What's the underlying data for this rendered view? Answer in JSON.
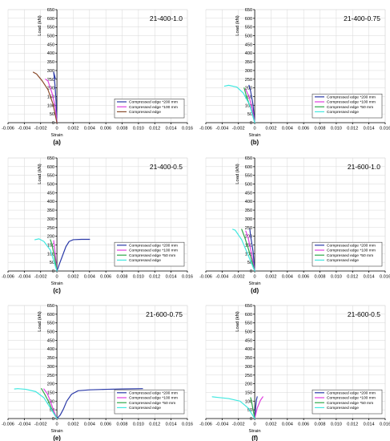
{
  "figure": {
    "x_label": "Strain",
    "y_label": "Load (kN)"
  },
  "chart_data": [
    {
      "type": "line",
      "title": "21-400-1.0",
      "caption": "(a)",
      "xlim": [
        -0.006,
        0.016
      ],
      "ylim": [
        0,
        650
      ],
      "x_ticks": [
        "-0.006",
        "-0.004",
        "-0.002",
        "0",
        "0.002",
        "0.004",
        "0.006",
        "0.008",
        "0.010",
        "0.012",
        "0.014",
        "0.016"
      ],
      "y_ticks": [
        "0",
        "50",
        "100",
        "150",
        "200",
        "250",
        "300",
        "350",
        "400",
        "450",
        "500",
        "550",
        "600",
        "650"
      ],
      "grid": true,
      "legend_position": "bottom-right",
      "series": [
        {
          "name": "Compressed edge *200 mm",
          "color": "#2b3aa8",
          "x": [
            0,
            -0.0001,
            -0.00025,
            -0.0004,
            -0.0002
          ],
          "y": [
            0,
            120,
            220,
            290,
            255
          ]
        },
        {
          "name": "Compressed edge *100 mm",
          "color": "#e040e0",
          "x": [
            0,
            -0.0002,
            -0.0006,
            -0.0011,
            -0.0014
          ],
          "y": [
            0,
            90,
            170,
            240,
            250
          ]
        },
        {
          "name": "Compressed edge",
          "color": "#8a4b2b",
          "x": [
            0,
            -0.0005,
            -0.0011,
            -0.0018,
            -0.0025,
            -0.0029
          ],
          "y": [
            0,
            110,
            190,
            240,
            280,
            290
          ]
        }
      ]
    },
    {
      "type": "line",
      "title": "21-400-0.75",
      "caption": "(b)",
      "xlim": [
        -0.006,
        0.016
      ],
      "ylim": [
        0,
        650
      ],
      "x_ticks": [
        "-0.006",
        "-0.004",
        "-0.002",
        "0",
        "0.002",
        "0.004",
        "0.006",
        "0.008",
        "0.010",
        "0.012",
        "0.014",
        "0.016"
      ],
      "y_ticks": [
        "0",
        "50",
        "100",
        "150",
        "200",
        "250",
        "300",
        "350",
        "400",
        "450",
        "500",
        "550",
        "600",
        "650"
      ],
      "grid": true,
      "legend_position": "bottom-right",
      "series": [
        {
          "name": "Compressed edge *200 mm",
          "color": "#2b3aa8",
          "x": [
            0,
            -0.0002,
            -0.0005,
            -0.0007
          ],
          "y": [
            0,
            100,
            180,
            215
          ]
        },
        {
          "name": "Compressed edge *100 mm",
          "color": "#e040e0",
          "x": [
            0,
            -0.0003,
            -0.0007,
            -0.0011
          ],
          "y": [
            0,
            80,
            150,
            190
          ]
        },
        {
          "name": "Compressed edge *50 mm",
          "color": "#2ea84a",
          "x": [
            0,
            -0.0004,
            -0.001,
            -0.0013
          ],
          "y": [
            0,
            70,
            150,
            200
          ]
        },
        {
          "name": "Compressed edge",
          "color": "#42e8e0",
          "x": [
            0,
            -0.0006,
            -0.0014,
            -0.0022,
            -0.0032,
            -0.0037
          ],
          "y": [
            0,
            100,
            170,
            205,
            215,
            210
          ]
        }
      ]
    },
    {
      "type": "line",
      "title": "21-400-0.5",
      "caption": "(c)",
      "xlim": [
        -0.006,
        0.016
      ],
      "ylim": [
        0,
        650
      ],
      "x_ticks": [
        "-0.006",
        "-0.004",
        "-0.002",
        "0",
        "0.002",
        "0.004",
        "0.006",
        "0.008",
        "0.010",
        "0.012",
        "0.014",
        "0.016"
      ],
      "y_ticks": [
        "0",
        "50",
        "100",
        "150",
        "200",
        "250",
        "300",
        "350",
        "400",
        "450",
        "500",
        "550",
        "600",
        "650"
      ],
      "grid": true,
      "legend_position": "bottom-right",
      "series": [
        {
          "name": "Compressed edge *200 mm",
          "color": "#2b3aa8",
          "x": [
            0,
            0.0003,
            0.0007,
            0.0011,
            0.0015,
            0.002,
            0.003,
            0.004
          ],
          "y": [
            0,
            40,
            90,
            140,
            170,
            180,
            182,
            182
          ]
        },
        {
          "name": "Compressed edge *100 mm",
          "color": "#e040e0",
          "x": [
            0,
            -0.0002,
            -0.0004
          ],
          "y": [
            0,
            90,
            175
          ]
        },
        {
          "name": "Compressed edge *50 mm",
          "color": "#2ea84a",
          "x": [
            0,
            -0.0003,
            -0.0006,
            -0.0008
          ],
          "y": [
            0,
            80,
            150,
            180
          ]
        },
        {
          "name": "Compressed edge",
          "color": "#42e8e0",
          "x": [
            0,
            -0.0008,
            -0.0016,
            -0.0022,
            -0.0027
          ],
          "y": [
            0,
            120,
            170,
            185,
            180
          ]
        }
      ]
    },
    {
      "type": "line",
      "title": "21-600-1.0",
      "caption": "(d)",
      "xlim": [
        -0.006,
        0.016
      ],
      "ylim": [
        0,
        650
      ],
      "x_ticks": [
        "-0.006",
        "-0.004",
        "-0.002",
        "0",
        "0.002",
        "0.004",
        "0.006",
        "0.008",
        "0.010",
        "0.012",
        "0.014",
        "0.016"
      ],
      "y_ticks": [
        "0",
        "50",
        "100",
        "150",
        "200",
        "250",
        "300",
        "350",
        "400",
        "450",
        "500",
        "550",
        "600",
        "650"
      ],
      "grid": true,
      "legend_position": "bottom-right",
      "series": [
        {
          "name": "Compressed edge *200 mm",
          "color": "#2b3aa8",
          "x": [
            0,
            -0.0002,
            -0.0005,
            -0.0006
          ],
          "y": [
            0,
            110,
            200,
            240
          ]
        },
        {
          "name": "Compressed edge *100 mm",
          "color": "#e040e0",
          "x": [
            0,
            -0.0004,
            -0.0008,
            -0.0011
          ],
          "y": [
            0,
            100,
            190,
            230
          ]
        },
        {
          "name": "Compressed edge *50 mm",
          "color": "#2ea84a",
          "x": [
            0,
            -0.0006,
            -0.0012,
            -0.0016
          ],
          "y": [
            0,
            100,
            190,
            240
          ]
        },
        {
          "name": "Compressed edge",
          "color": "#42e8e0",
          "x": [
            0,
            -0.0008,
            -0.0016,
            -0.0024,
            -0.0027
          ],
          "y": [
            0,
            90,
            180,
            235,
            240
          ]
        }
      ]
    },
    {
      "type": "line",
      "title": "21-600-0.75",
      "caption": "(e)",
      "xlim": [
        -0.006,
        0.016
      ],
      "ylim": [
        0,
        650
      ],
      "x_ticks": [
        "-0.006",
        "-0.004",
        "-0.002",
        "0",
        "0.002",
        "0.004",
        "0.006",
        "0.008",
        "0.010",
        "0.012",
        "0.014",
        "0.016"
      ],
      "y_ticks": [
        "0",
        "50",
        "100",
        "150",
        "200",
        "250",
        "300",
        "350",
        "400",
        "450",
        "500",
        "550",
        "600",
        "650"
      ],
      "grid": true,
      "legend_position": "bottom-right",
      "series": [
        {
          "name": "Compressed edge *200 mm",
          "color": "#2b3aa8",
          "x": [
            0,
            0.0004,
            0.0008,
            0.0012,
            0.0018,
            0.0026,
            0.004,
            0.006,
            0.008,
            0.0105
          ],
          "y": [
            0,
            20,
            55,
            100,
            140,
            160,
            165,
            168,
            170,
            172
          ]
        },
        {
          "name": "Compressed edge *100 mm",
          "color": "#e040e0",
          "x": [
            0,
            -0.0004,
            -0.0008,
            -0.0012,
            -0.0016
          ],
          "y": [
            0,
            45,
            100,
            145,
            170
          ]
        },
        {
          "name": "Compressed edge *50 mm",
          "color": "#2ea84a",
          "x": [
            0,
            -0.0005,
            -0.001,
            -0.0015,
            -0.0019
          ],
          "y": [
            0,
            40,
            95,
            140,
            172
          ]
        },
        {
          "name": "Compressed edge",
          "color": "#42e8e0",
          "x": [
            0,
            -0.0008,
            -0.0016,
            -0.0026,
            -0.0038,
            -0.0048,
            -0.0052
          ],
          "y": [
            0,
            60,
            120,
            155,
            168,
            172,
            170
          ]
        }
      ]
    },
    {
      "type": "line",
      "title": "21-600-0.5",
      "caption": "(f)",
      "xlim": [
        -0.006,
        0.016
      ],
      "ylim": [
        0,
        650
      ],
      "x_ticks": [
        "-0.006",
        "-0.004",
        "-0.002",
        "0",
        "0.002",
        "0.004",
        "0.006",
        "0.008",
        "0.010",
        "0.012",
        "0.014",
        "0.016"
      ],
      "y_ticks": [
        "0",
        "50",
        "100",
        "150",
        "200",
        "250",
        "300",
        "350",
        "400",
        "450",
        "500",
        "550",
        "600",
        "650"
      ],
      "grid": true,
      "legend_position": "bottom-right",
      "series": [
        {
          "name": "Compressed edge *200 mm",
          "color": "#2b3aa8",
          "x": [
            0,
            0.0001,
            0.0002,
            0.0003
          ],
          "y": [
            0,
            60,
            105,
            125
          ]
        },
        {
          "name": "Compressed edge *100 mm",
          "color": "#e040e0",
          "x": [
            0,
            0.0003,
            0.0007,
            0.001
          ],
          "y": [
            0,
            60,
            105,
            125
          ]
        },
        {
          "name": "Compressed edge *50 mm",
          "color": "#2ea84a",
          "x": [
            0,
            -0.0002,
            -0.0004,
            -0.0005
          ],
          "y": [
            0,
            50,
            100,
            120
          ]
        },
        {
          "name": "Compressed edge",
          "color": "#42e8e0",
          "x": [
            0,
            -0.0008,
            -0.0018,
            -0.0032,
            -0.0046,
            -0.0052
          ],
          "y": [
            0,
            60,
            100,
            115,
            122,
            125
          ]
        }
      ]
    }
  ]
}
